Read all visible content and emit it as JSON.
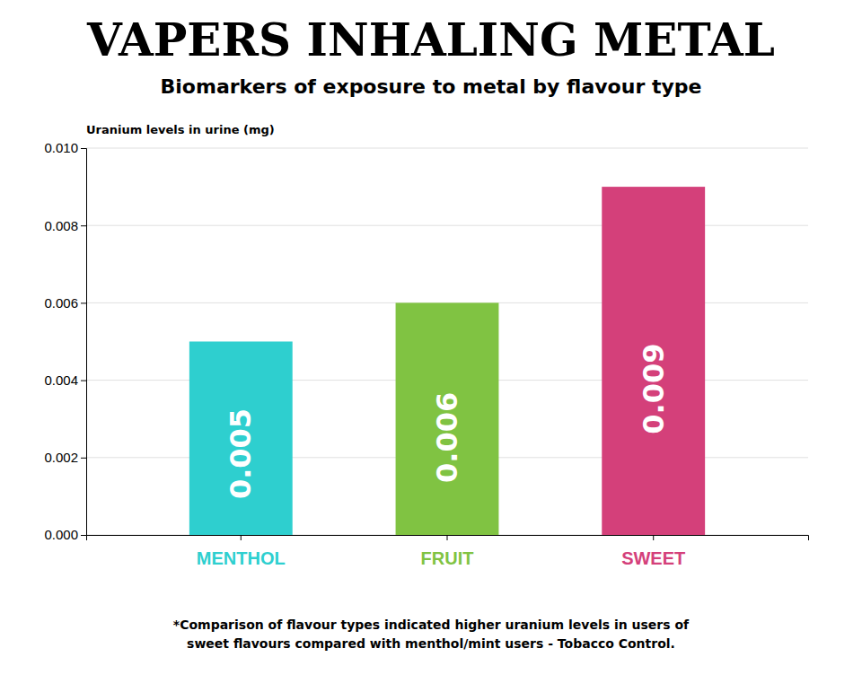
{
  "chart_data": {
    "type": "bar",
    "title": "VAPERS INHALING METAL",
    "subtitle": "Biomarkers of exposure to metal by flavour type",
    "ylabel": "Uranium levels in urine (mg)",
    "annotations": [
      "*Comparison of flavour types indicated higher uranium levels in users of\nsweet flavours compared with menthol/mint users -  Tobacco Control."
    ],
    "categories": [
      "MENTHOL",
      "FRUIT",
      "SWEET"
    ],
    "values": [
      0.005,
      0.006,
      0.009
    ],
    "colors": [
      "#2ecfcf",
      "#80c342",
      "#d4407a"
    ],
    "ylim": [
      0.0,
      0.01
    ],
    "yticks": [
      {
        "value": 0.0,
        "label": "0.000"
      },
      0.002,
      0.004,
      0.006,
      0.008,
      {
        "value": 0.01,
        "label": "0.010"
      }
    ],
    "grid": true,
    "data_labels": true
  }
}
